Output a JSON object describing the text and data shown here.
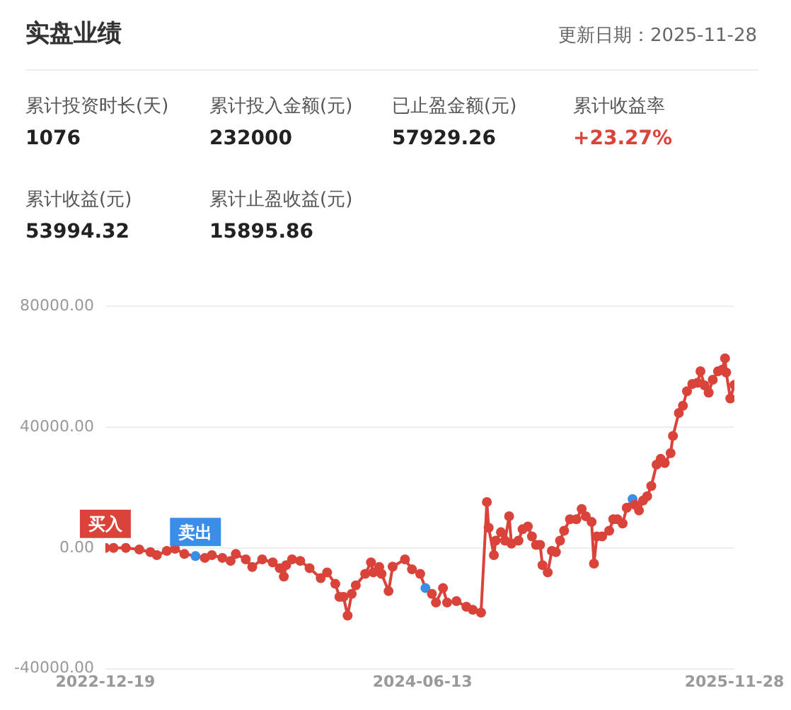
{
  "chart_data": [
    {
      "type": "other",
      "title": "实盘业绩",
      "annotations": [
        "更新日期：2025-11-28",
        "累计投资时长(天)",
        "1076",
        "累计投入金额(元)",
        "232000",
        "已止盈金额(元)",
        "57929.26",
        "累计收益率",
        "+23.27%",
        "累计收益(元)",
        "53994.32",
        "累计止盈收益(元)",
        "15895.86"
      ]
    },
    {
      "type": "line",
      "marker": "circle",
      "grid": "y",
      "color": "#d9433a",
      "x": [
        "2022-12-19",
        "2023-01-02",
        "2023-01-23",
        "2023-02-15",
        "2023-03-06",
        "2023-03-17",
        "2023-04-03",
        "2023-04-17",
        "2023-05-03",
        "2023-05-22",
        "2023-06-07",
        "2023-06-19",
        "2023-07-07",
        "2023-07-21",
        "2023-07-30",
        "2023-08-16",
        "2023-08-27",
        "2023-09-13",
        "2023-10-01",
        "2023-10-13",
        "2023-10-20",
        "2023-10-24",
        "2023-11-03",
        "2023-11-17",
        "2023-12-03",
        "2023-12-22",
        "2024-01-02",
        "2024-01-16",
        "2024-01-23",
        "2024-01-30",
        "2024-02-06",
        "2024-02-13",
        "2024-02-20",
        "2024-03-07",
        "2024-03-17",
        "2024-03-21",
        "2024-03-31",
        "2024-04-04",
        "2024-04-16",
        "2024-04-23",
        "2024-05-14",
        "2024-05-26",
        "2024-06-09",
        "2024-06-18",
        "2024-06-29",
        "2024-07-06",
        "2024-07-18",
        "2024-07-25",
        "2024-08-10",
        "2024-08-27",
        "2024-09-07",
        "2024-09-21",
        "2024-10-01",
        "2024-10-04",
        "2024-10-13",
        "2024-10-16",
        "2024-10-25",
        "2024-11-01",
        "2024-11-08",
        "2024-11-12",
        "2024-11-24",
        "2024-12-01",
        "2024-12-10",
        "2024-12-17",
        "2024-12-24",
        "2024-12-31",
        "2025-01-04",
        "2025-01-13",
        "2025-01-20",
        "2025-01-27",
        "2025-02-03",
        "2025-02-10",
        "2025-02-20",
        "2025-03-03",
        "2025-03-12",
        "2025-03-19",
        "2025-03-29",
        "2025-04-02",
        "2025-04-07",
        "2025-04-16",
        "2025-04-28",
        "2025-05-05",
        "2025-05-12",
        "2025-05-21",
        "2025-05-28",
        "2025-06-07",
        "2025-06-11",
        "2025-06-18",
        "2025-06-25",
        "2025-07-02",
        "2025-07-09",
        "2025-07-18",
        "2025-07-25",
        "2025-08-01",
        "2025-08-11",
        "2025-08-15",
        "2025-08-25",
        "2025-09-01",
        "2025-09-08",
        "2025-09-17",
        "2025-09-26",
        "2025-10-01",
        "2025-10-08",
        "2025-10-15",
        "2025-10-22",
        "2025-10-31",
        "2025-11-07",
        "2025-11-12",
        "2025-11-14",
        "2025-11-21",
        "2025-11-28"
      ],
      "values": [
        0,
        0,
        0,
        -500,
        -1400,
        -2400,
        -1000,
        -300,
        -2000,
        -2700,
        -3300,
        -2400,
        -3300,
        -4300,
        -2000,
        -3800,
        -6300,
        -3800,
        -4800,
        -6700,
        -9500,
        -5700,
        -3800,
        -4300,
        -6700,
        -10000,
        -8100,
        -11900,
        -16200,
        -16200,
        -22400,
        -15200,
        -12400,
        -8600,
        -4800,
        -8100,
        -6300,
        -8600,
        -14300,
        -6200,
        -3800,
        -7100,
        -8600,
        -13300,
        -15200,
        -18100,
        -13300,
        -18100,
        -17600,
        -19500,
        -20500,
        -21400,
        15200,
        6700,
        -2400,
        2400,
        5200,
        2400,
        10500,
        1400,
        2400,
        6200,
        7100,
        3800,
        1000,
        1000,
        -5700,
        -8100,
        -1000,
        -1400,
        2400,
        5700,
        9500,
        9500,
        12900,
        10500,
        8600,
        -5200,
        3800,
        3800,
        5700,
        9500,
        9500,
        8100,
        13300,
        16200,
        14300,
        12400,
        15700,
        17100,
        20500,
        27600,
        29500,
        28100,
        31400,
        37100,
        44700,
        47100,
        51900,
        54300,
        54700,
        58500,
        53800,
        51400,
        55700,
        58500,
        59000,
        62800,
        58100,
        49500,
        54000
      ],
      "colors": [
        "#d9433a",
        "#d9433a",
        "#d9433a",
        "#d9433a",
        "#d9433a",
        "#d9433a",
        "#d9433a",
        "#d9433a",
        "#d9433a",
        "#3b8ee8",
        "#d9433a",
        "#d9433a",
        "#d9433a",
        "#d9433a",
        "#d9433a",
        "#d9433a",
        "#d9433a",
        "#d9433a",
        "#d9433a",
        "#d9433a",
        "#d9433a",
        "#d9433a",
        "#d9433a",
        "#d9433a",
        "#d9433a",
        "#d9433a",
        "#d9433a",
        "#d9433a",
        "#d9433a",
        "#d9433a",
        "#d9433a",
        "#d9433a",
        "#d9433a",
        "#d9433a",
        "#d9433a",
        "#d9433a",
        "#d9433a",
        "#d9433a",
        "#d9433a",
        "#d9433a",
        "#d9433a",
        "#d9433a",
        "#d9433a",
        "#3b8ee8",
        "#d9433a",
        "#d9433a",
        "#d9433a",
        "#d9433a",
        "#d9433a",
        "#d9433a",
        "#d9433a",
        "#d9433a",
        "#d9433a",
        "#d9433a",
        "#d9433a",
        "#d9433a",
        "#d9433a",
        "#d9433a",
        "#d9433a",
        "#d9433a",
        "#d9433a",
        "#d9433a",
        "#d9433a",
        "#d9433a",
        "#d9433a",
        "#d9433a",
        "#d9433a",
        "#d9433a",
        "#d9433a",
        "#d9433a",
        "#d9433a",
        "#d9433a",
        "#d9433a",
        "#d9433a",
        "#d9433a",
        "#d9433a",
        "#d9433a",
        "#d9433a",
        "#d9433a",
        "#d9433a",
        "#d9433a",
        "#d9433a",
        "#d9433a",
        "#d9433a",
        "#d9433a",
        "#3b8ee8",
        "#d9433a",
        "#d9433a",
        "#d9433a",
        "#d9433a",
        "#d9433a",
        "#d9433a",
        "#d9433a",
        "#d9433a",
        "#d9433a",
        "#d9433a",
        "#d9433a",
        "#d9433a",
        "#d9433a",
        "#d9433a",
        "#d9433a",
        "#d9433a",
        "#d9433a",
        "#d9433a",
        "#d9433a",
        "#d9433a",
        "#d9433a",
        "#d9433a",
        "#d9433a",
        "#d9433a",
        "#d9433a"
      ],
      "xlim": [
        "2022-12-19",
        "2025-11-28"
      ],
      "xticks": [
        {
          "value": "2022-12-19",
          "label": "2022-12-19"
        },
        {
          "value": "2024-06-13",
          "label": "2024-06-13"
        },
        {
          "value": "2025-11-28",
          "label": "2025-11-28"
        }
      ],
      "ylim": [
        -40000,
        80000
      ],
      "yticks": [
        {
          "value": -40000,
          "label": "-40000.00"
        },
        {
          "value": 0,
          "label": "0.00"
        },
        {
          "value": 40000,
          "label": "40000.00"
        },
        {
          "value": 80000,
          "label": "80000.00"
        }
      ],
      "annotations": [
        {
          "text": "买入",
          "x": "2022-12-19",
          "y": 0
        },
        {
          "text": "卖出",
          "x": "2023-05-22",
          "y": -2700
        }
      ]
    }
  ]
}
